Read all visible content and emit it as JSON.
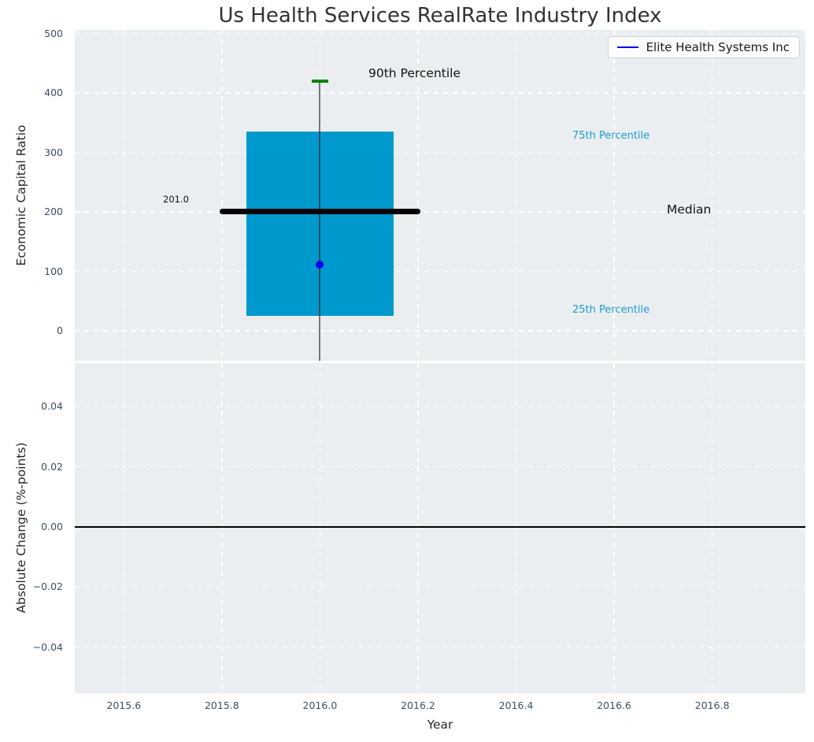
{
  "title": "Us Health Services RealRate Industry Index",
  "axis_labels": {
    "top_y": "Economic Capital Ratio",
    "bottom_y": "Absolute Change (%-points)",
    "x": "Year"
  },
  "legend": {
    "label": "Elite Health Systems Inc",
    "position": "upper right"
  },
  "annotations": {
    "p90_label": "90th Percentile",
    "p75_label": "75th Percentile",
    "median_label": "Median",
    "p25_label": "25th Percentile",
    "median_value_label": "201.0"
  },
  "colors": {
    "box_fill": "#0099cd",
    "p90_cap": "#008000",
    "median_line": "#000000",
    "company_point": "#0000ee",
    "percentile_text": "#1b9cd1",
    "plot_bg": "#ebeef0",
    "tick_text": "#3d4e63",
    "grid": "#ffffff"
  },
  "chart_data": [
    {
      "type": "box",
      "title": "Us Health Services RealRate Industry Index",
      "ylabel": "Economic Capital Ratio",
      "ylim": [
        -50,
        506
      ],
      "xlim": [
        2015.5,
        2016.99
      ],
      "yticks": [
        0,
        100,
        200,
        300,
        400,
        500
      ],
      "ytick_labels": [
        "0",
        "100",
        "200",
        "300",
        "400",
        "500"
      ],
      "xticks": [
        2015.6,
        2015.8,
        2016.0,
        2016.2,
        2016.4,
        2016.6,
        2016.8
      ],
      "grid": "white dashed, on",
      "box": {
        "x_center": 2016.0,
        "x_left": 2015.85,
        "x_right": 2016.15,
        "p90": 420,
        "p75": 335,
        "median": 201.0,
        "p25": 25,
        "p10_whisker_clipped_below_axis": true,
        "median_line_x": [
          2015.795,
          2016.205
        ]
      },
      "company_point": {
        "name": "Elite Health Systems Inc",
        "x": 2016.0,
        "y": 112
      },
      "legend_entries": [
        "Elite Health Systems Inc"
      ]
    },
    {
      "type": "line",
      "ylabel": "Absolute Change (%-points)",
      "xlabel": "Year",
      "ylim": [
        -0.0553,
        0.0545
      ],
      "xlim": [
        2015.5,
        2016.99
      ],
      "yticks": [
        0.04,
        0.02,
        0.0,
        -0.02,
        -0.04
      ],
      "ytick_labels": [
        "0.04",
        "0.02",
        "0.00",
        "−0.02",
        "−0.04"
      ],
      "xticks": [
        2015.6,
        2015.8,
        2016.0,
        2016.2,
        2016.4,
        2016.6,
        2016.8
      ],
      "xtick_labels": [
        "2015.6",
        "2015.8",
        "2016.0",
        "2016.2",
        "2016.4",
        "2016.6",
        "2016.8"
      ],
      "zero_line_y": 0.0,
      "grid": "white dashed, on",
      "series": []
    }
  ]
}
